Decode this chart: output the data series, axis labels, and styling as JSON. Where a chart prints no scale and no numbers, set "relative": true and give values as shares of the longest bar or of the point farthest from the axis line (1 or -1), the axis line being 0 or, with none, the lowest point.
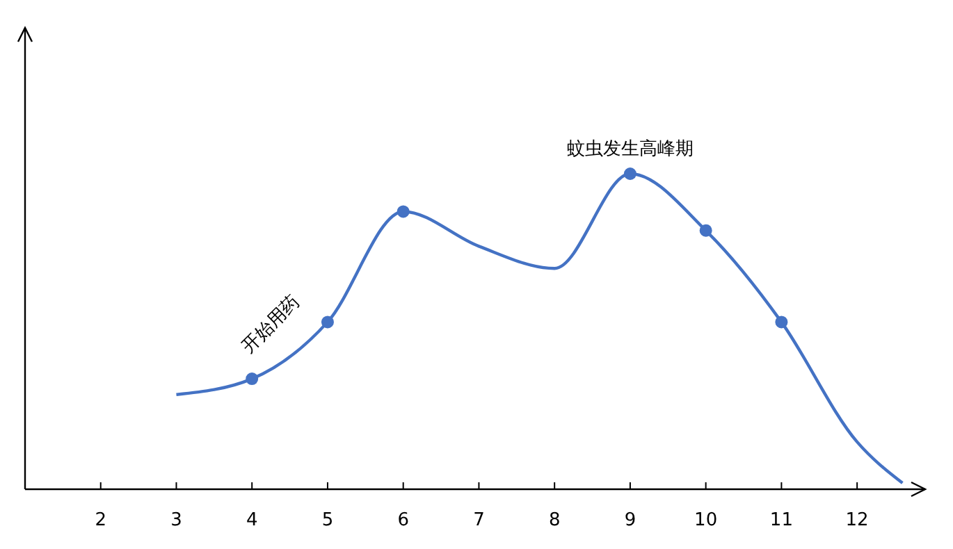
{
  "chart_data": {
    "type": "line",
    "relative": true,
    "xlim": [
      1,
      12.9
    ],
    "xticks": [
      2,
      3,
      4,
      5,
      6,
      7,
      8,
      9,
      10,
      11,
      12
    ],
    "series": [
      {
        "color": "#4472c4",
        "marker": "none",
        "line_style": "solid",
        "x": [
          3,
          4,
          5,
          6,
          7,
          8,
          9,
          10,
          11,
          12,
          12.6
        ],
        "values": [
          0.3,
          0.35,
          0.53,
          0.88,
          0.77,
          0.7,
          1,
          0.82,
          0.53,
          0.15,
          0.02
        ]
      },
      {
        "type": "scatter",
        "color": "#4472c4",
        "marker": "circle",
        "x": [
          4,
          5,
          6,
          9,
          10,
          11
        ],
        "values": [
          0.35,
          0.53,
          0.88,
          1,
          0.82,
          0.53
        ]
      }
    ],
    "annotations": [
      {
        "text": "开始用药",
        "x": 4,
        "y": 0.35
      },
      {
        "text": "蚊虫发生高峰期",
        "x": 9,
        "y": 1
      }
    ]
  }
}
